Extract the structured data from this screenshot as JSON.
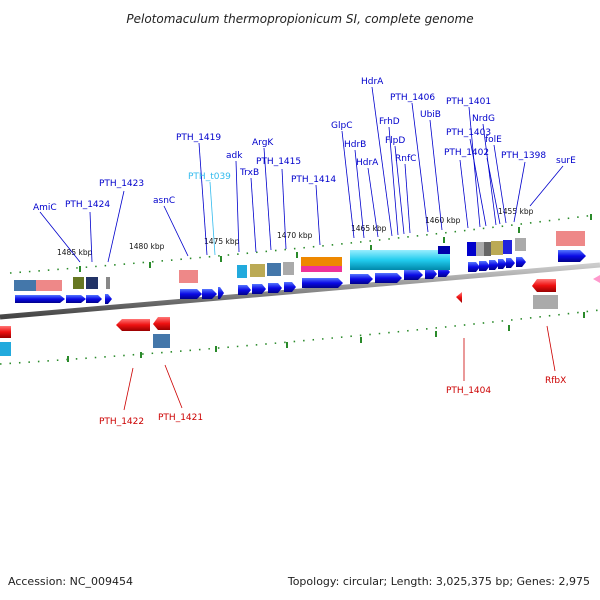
{
  "title": "Pelotomaculum thermopropionicum SI, complete genome",
  "footer": {
    "accession": "Accession: NC_009454",
    "summary": "Topology: circular; Length: 3,025,375 bp; Genes: 2,975"
  },
  "scale_labels": [
    "1485 kbp",
    "1480 kbp",
    "1475 kbp",
    "1470 kbp",
    "1465 kbp",
    "1460 kbp",
    "1455 kbp"
  ],
  "upper_labels": [
    "AmiC",
    "PTH_1424",
    "PTH_1423",
    "asnC",
    "PTH_1419",
    "PTH_t039",
    "adk",
    "TrxB",
    "ArgK",
    "PTH_1415",
    "PTH_1414",
    "GlpC",
    "HdrB",
    "HdrA",
    "HdrA",
    "FrhD",
    "FlpD",
    "RnfC",
    "PTH_1406",
    "UbiB",
    "PTH_1401",
    "PTH_1403",
    "NrdG",
    "PTH_1402",
    "folE",
    "PTH_1398",
    "surE"
  ],
  "lower_labels": [
    "PTH_1422",
    "PTH_1421",
    "PTH_1404",
    "RfbX"
  ],
  "colors": {
    "forward_gene": "#0a0ae6",
    "reverse_gene": "#ee1111",
    "trna": "#33bbee",
    "backbone": "#888888",
    "tick": "#2a8a2a"
  }
}
